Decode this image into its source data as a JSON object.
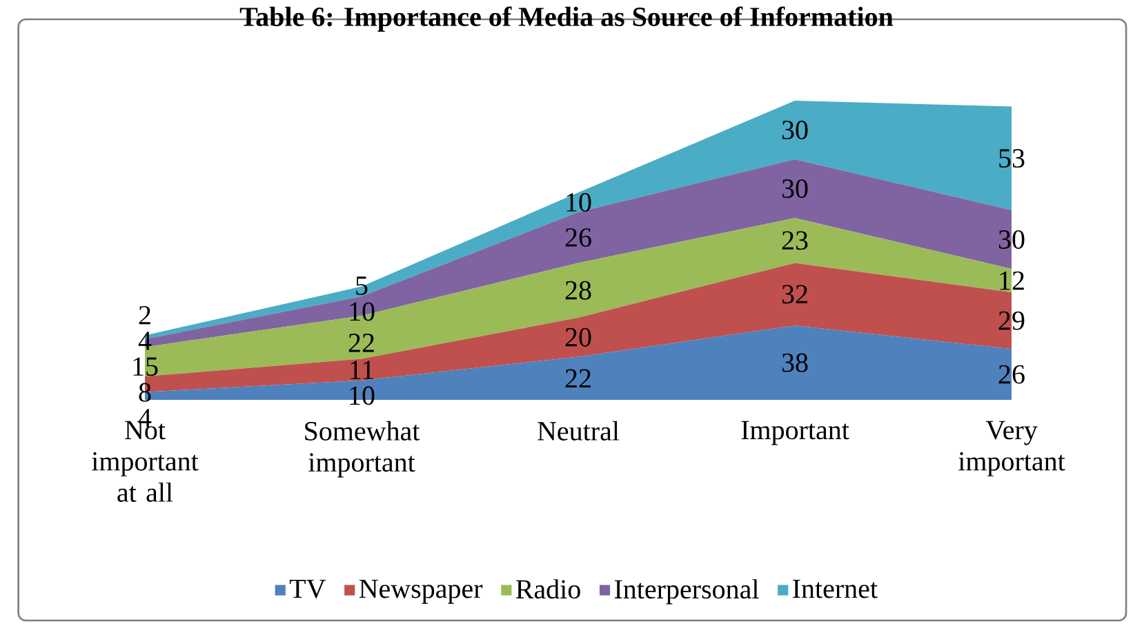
{
  "chart_data": {
    "type": "area",
    "stacked": true,
    "title": "Table 6: Importance of Media as Source of Information",
    "categories": [
      "Not important at all",
      "Somewhat important",
      "Neutral",
      "Important",
      "Very important"
    ],
    "series": [
      {
        "name": "TV",
        "color": "#4f81bd",
        "values": [
          4,
          10,
          22,
          38,
          26
        ]
      },
      {
        "name": "Newspaper",
        "color": "#c0504d",
        "values": [
          8,
          11,
          20,
          32,
          29
        ]
      },
      {
        "name": "Radio",
        "color": "#9bbb59",
        "values": [
          15,
          22,
          28,
          23,
          12
        ]
      },
      {
        "name": "Interpersonal",
        "color": "#8064a2",
        "values": [
          4,
          10,
          26,
          30,
          30
        ]
      },
      {
        "name": "Internet",
        "color": "#4bacc6",
        "values": [
          2,
          5,
          10,
          30,
          53
        ]
      }
    ],
    "data_labels": true,
    "legend": "bottom"
  }
}
